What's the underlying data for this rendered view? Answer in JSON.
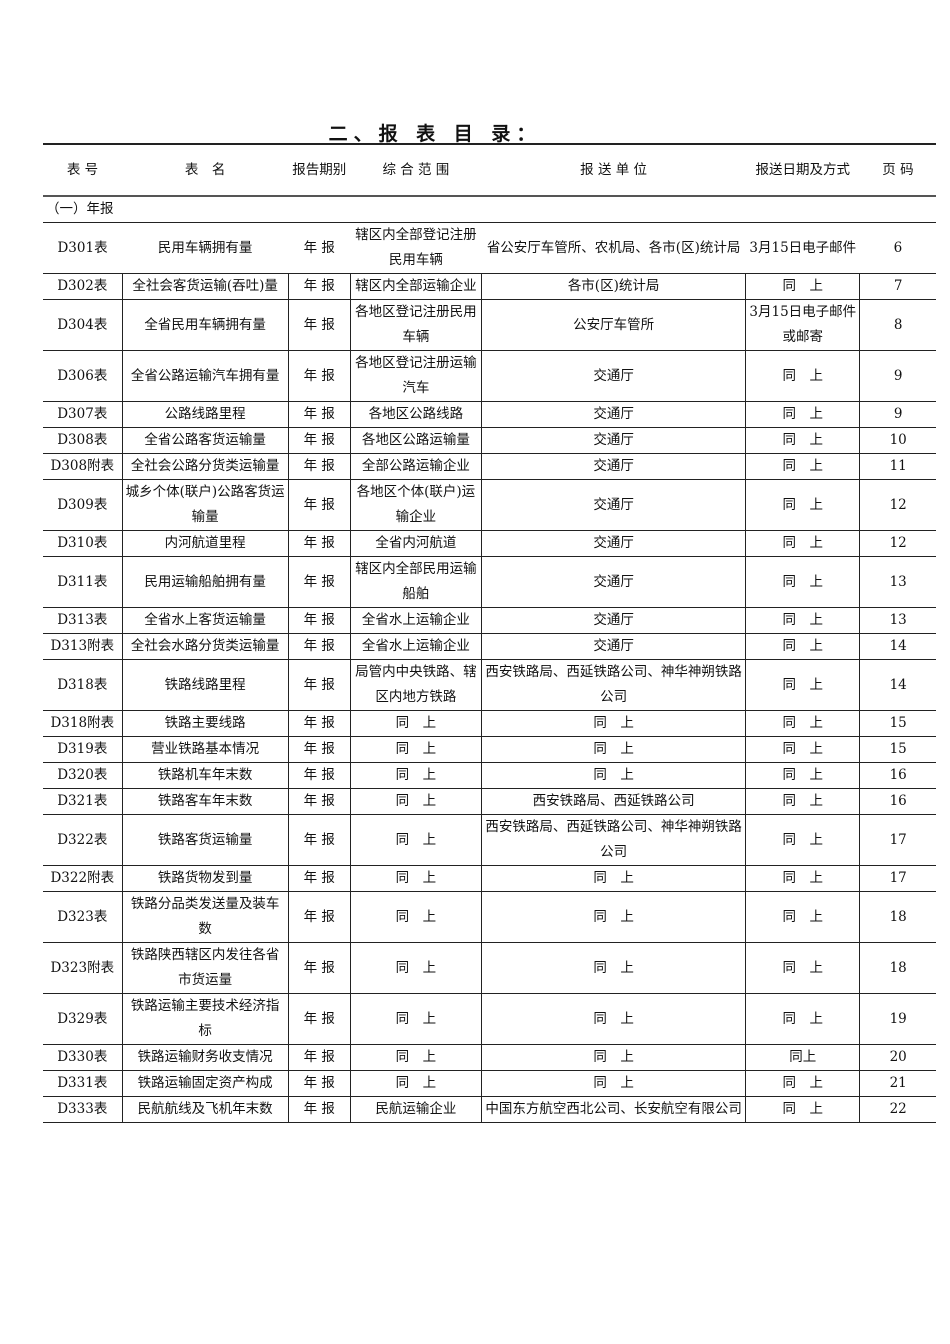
{
  "title": "二、报 表 目 录：",
  "headers": [
    "表 号",
    "表　名",
    "报告期别",
    "综 合 范 围",
    "报 送 单 位",
    "报送日期及方式",
    "页 码"
  ],
  "section": "（一）年报",
  "rows": [
    [
      "D301表",
      "民用车辆拥有量",
      "年 报",
      "辖区内全部登记注册民用车辆",
      "省公安厅车管所、农机局、各市(区)统计局",
      "3月15日电子邮件",
      "6"
    ],
    [
      "D302表",
      "全社会客货运输(吞吐)量",
      "年 报",
      "辖区内全部运输企业",
      "各市(区)统计局",
      "同　上",
      "7"
    ],
    [
      "D304表",
      "全省民用车辆拥有量",
      "年 报",
      "各地区登记注册民用车辆",
      "公安厅车管所",
      "3月15日电子邮件或邮寄",
      "8"
    ],
    [
      "D306表",
      "全省公路运输汽车拥有量",
      "年 报",
      "各地区登记注册运输汽车",
      "交通厅",
      "同　上",
      "9"
    ],
    [
      "D307表",
      "公路线路里程",
      "年 报",
      "各地区公路线路",
      "交通厅",
      "同　上",
      "9"
    ],
    [
      "D308表",
      "全省公路客货运输量",
      "年 报",
      "各地区公路运输量",
      "交通厅",
      "同　上",
      "10"
    ],
    [
      "D308附表",
      "全社会公路分货类运输量",
      "年 报",
      "全部公路运输企业",
      "交通厅",
      "同　上",
      "11"
    ],
    [
      "D309表",
      "城乡个体(联户)公路客货运输量",
      "年 报",
      "各地区个体(联户)运输企业",
      "交通厅",
      "同　上",
      "12"
    ],
    [
      "D310表",
      "内河航道里程",
      "年 报",
      "全省内河航道",
      "交通厅",
      "同　上",
      "12"
    ],
    [
      "D311表",
      "民用运输船舶拥有量",
      "年 报",
      "辖区内全部民用运输船舶",
      "交通厅",
      "同　上",
      "13"
    ],
    [
      "D313表",
      "全省水上客货运输量",
      "年 报",
      "全省水上运输企业",
      "交通厅",
      "同　上",
      "13"
    ],
    [
      "D313附表",
      "全社会水路分货类运输量",
      "年 报",
      "全省水上运输企业",
      "交通厅",
      "同　上",
      "14"
    ],
    [
      "D318表",
      "铁路线路里程",
      "年 报",
      "局管内中央铁路、辖区内地方铁路",
      "西安铁路局、西延铁路公司、神华神朔铁路公司",
      "同　上",
      "14"
    ],
    [
      "D318附表",
      "铁路主要线路",
      "年 报",
      "同　上",
      "同　上",
      "同　上",
      "15"
    ],
    [
      "D319表",
      "营业铁路基本情况",
      "年 报",
      "同　上",
      "同　上",
      "同　上",
      "15"
    ],
    [
      "D320表",
      "铁路机车年末数",
      "年 报",
      "同　上",
      "同　上",
      "同　上",
      "16"
    ],
    [
      "D321表",
      "铁路客车年末数",
      "年 报",
      "同　上",
      "西安铁路局、西延铁路公司",
      "同　上",
      "16"
    ],
    [
      "D322表",
      "铁路客货运输量",
      "年 报",
      "同　上",
      "西安铁路局、西延铁路公司、神华神朔铁路公司",
      "同　上",
      "17"
    ],
    [
      "D322附表",
      "铁路货物发到量",
      "年 报",
      "同　上",
      "同　上",
      "同　上",
      "17"
    ],
    [
      "D323表",
      "铁路分品类发送量及装车数",
      "年 报",
      "同　上",
      "同　上",
      "同　上",
      "18"
    ],
    [
      "D323附表",
      "铁路陕西辖区内发往各省市货运量",
      "年 报",
      "同　上",
      "同　上",
      "同　上",
      "18"
    ],
    [
      "D329表",
      "铁路运输主要技术经济指标",
      "年 报",
      "同　上",
      "同　上",
      "同　上",
      "19"
    ],
    [
      "D330表",
      "铁路运输财务收支情况",
      "年 报",
      "同　上",
      "同　上",
      "同上",
      "20"
    ],
    [
      "D331表",
      "铁路运输固定资产构成",
      "年 报",
      "同　上",
      "同　上",
      "同　上",
      "21"
    ],
    [
      "D333表",
      "民航航线及飞机年末数",
      "年 报",
      "民航运输企业",
      "中国东方航空西北公司、长安航空有限公司",
      "同　上",
      "22"
    ]
  ]
}
